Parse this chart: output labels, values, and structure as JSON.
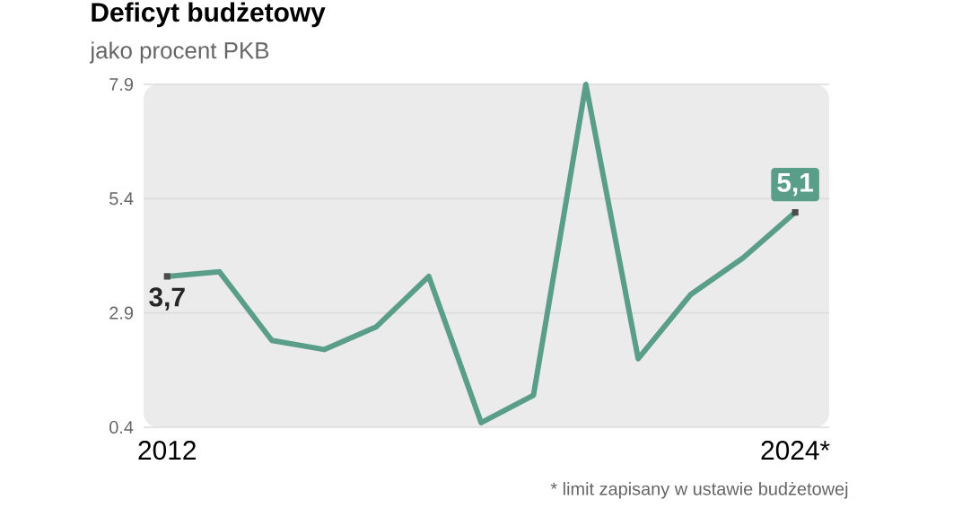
{
  "chart_data": {
    "type": "line",
    "title": "Deficyt budżetowy",
    "subtitle": "jako procent PKB",
    "categories": [
      "2012",
      null,
      null,
      null,
      null,
      null,
      null,
      null,
      null,
      null,
      null,
      null,
      "2024*"
    ],
    "series": [
      {
        "color": "#5a9e8a",
        "values": [
          3.7,
          3.8,
          2.3,
          2.1,
          2.6,
          3.7,
          0.5,
          1.1,
          7.9,
          1.9,
          3.3,
          4.1,
          5.1
        ],
        "value_labels": [
          "3,7",
          null,
          null,
          null,
          null,
          null,
          null,
          null,
          null,
          null,
          null,
          null,
          "5,1"
        ]
      }
    ],
    "ylim": [
      0.4,
      7.9
    ],
    "yticks": [
      0.4,
      2.9,
      5.4,
      7.9
    ],
    "grid": "y",
    "annotations": [
      "* limit zapisany w ustawie budżetowej"
    ]
  }
}
